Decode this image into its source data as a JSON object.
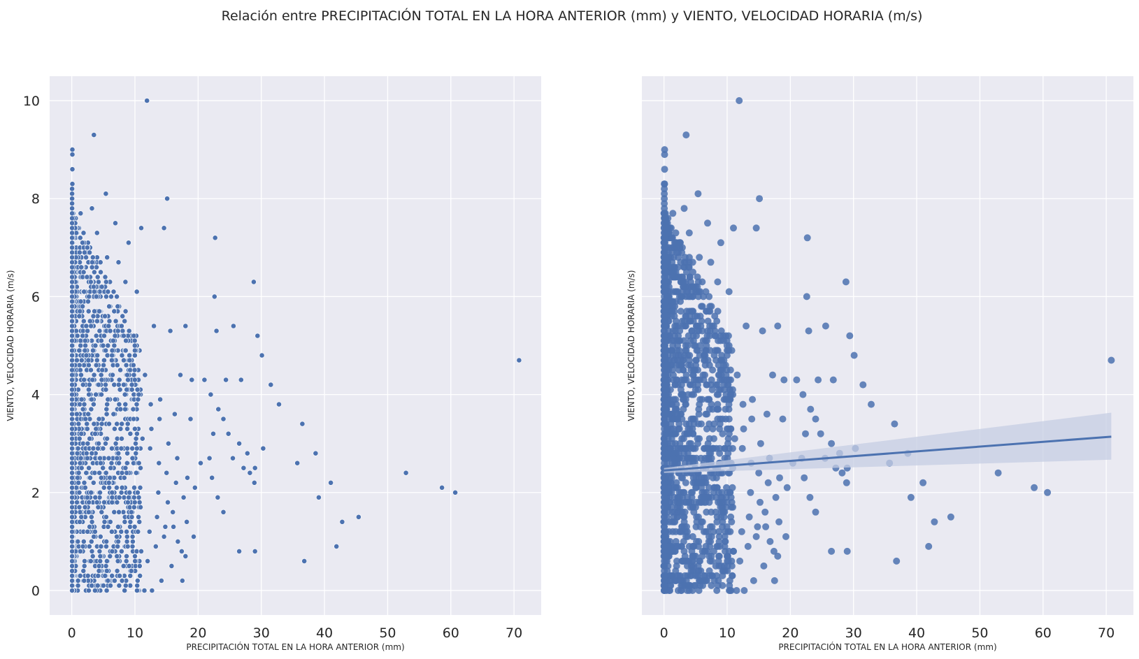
{
  "figure": {
    "title": "Relación entre PRECIPITACIÓN TOTAL EN LA HORA ANTERIOR (mm) y VIENTO, VELOCIDAD HORARIA (m/s)",
    "background": "#ffffff",
    "axes_facecolor": "#eaeaf2",
    "grid_color": "#ffffff",
    "point_color": "#4c72b0",
    "band_color": "#c5cde3"
  },
  "chart_data": [
    {
      "type": "scatter",
      "title": "",
      "xlabel": "PRECIPITACIÓN TOTAL EN LA HORA ANTERIOR (mm)",
      "ylabel": "VIENTO, VELOCIDAD HORARIA (m/s)",
      "xlim": [
        -3.5,
        74.3
      ],
      "ylim": [
        -0.5,
        10.5
      ],
      "xticks": [
        0,
        10,
        20,
        30,
        40,
        50,
        60,
        70
      ],
      "yticks": [
        0,
        2,
        4,
        6,
        8,
        10
      ],
      "grid": true,
      "legend": "none",
      "series": [
        {
          "x": [
            11.9,
            3.5,
            0.1,
            0.1,
            0.1,
            0.1,
            5.4,
            15.1,
            1.4,
            6.9,
            3.2,
            11.0,
            14.6,
            4.0,
            22.7,
            9.0,
            5.6,
            7.4,
            1.5,
            28.8,
            8.5,
            4.1,
            10.3,
            22.6,
            15.6,
            2.3,
            29.4,
            25.6,
            22.9,
            30.1,
            26.8,
            24.4,
            31.5,
            32.8,
            36.5,
            38.6,
            35.7,
            39.1,
            36.8,
            26.5,
            29.0,
            41.0,
            45.4,
            42.8,
            41.9,
            52.9,
            58.6,
            60.7,
            70.8,
            13.0,
            18.0,
            19.0,
            21.0,
            17.2,
            11.6,
            12.5,
            14.0,
            16.3,
            18.8,
            22.0,
            22.4,
            23.2,
            24.0,
            24.8,
            25.5,
            26.5,
            27.8,
            28.2,
            29.0,
            30.3,
            21.8,
            22.2,
            23.1,
            24.0,
            27.2,
            28.9,
            20.4,
            19.5,
            17.7,
            18.2,
            16.0,
            14.8,
            13.5,
            12.3,
            13.7,
            15.2,
            16.8,
            18.0,
            19.3,
            17.5,
            15.8,
            14.2,
            12.7,
            11.5,
            10.8,
            12.0,
            13.3,
            14.6,
            16.1,
            17.4,
            16.5,
            15.0,
            13.8,
            12.4,
            11.2,
            12.6,
            13.9,
            15.3,
            16.7,
            18.3
          ],
          "y": [
            10.0,
            9.3,
            9.0,
            8.9,
            8.6,
            8.3,
            8.1,
            8.0,
            7.7,
            7.5,
            7.8,
            7.4,
            7.4,
            7.3,
            7.2,
            7.1,
            6.8,
            6.7,
            6.6,
            6.3,
            6.3,
            6.4,
            6.1,
            6.0,
            5.3,
            5.4,
            5.2,
            5.4,
            5.3,
            4.8,
            4.3,
            4.3,
            4.2,
            3.8,
            3.4,
            2.8,
            2.6,
            1.9,
            0.6,
            0.8,
            0.8,
            2.2,
            1.5,
            1.4,
            0.9,
            2.4,
            2.1,
            2.0,
            4.7,
            5.4,
            5.4,
            4.3,
            4.3,
            4.4,
            4.4,
            3.8,
            3.9,
            3.6,
            3.5,
            4.0,
            3.2,
            3.7,
            3.5,
            3.2,
            2.7,
            3.0,
            2.8,
            2.4,
            2.5,
            2.9,
            2.7,
            2.3,
            1.9,
            1.6,
            2.5,
            2.2,
            2.6,
            2.1,
            1.9,
            1.4,
            1.6,
            1.3,
            1.5,
            1.2,
            2.0,
            1.8,
            1.0,
            0.7,
            1.1,
            0.2,
            0.5,
            0.2,
            0.0,
            0.0,
            0.3,
            0.6,
            0.9,
            1.1,
            1.3,
            0.8,
            2.2,
            2.4,
            2.6,
            2.9,
            3.1,
            3.3,
            3.5,
            3.0,
            2.7,
            2.3
          ]
        }
      ]
    },
    {
      "type": "scatter",
      "title": "",
      "xlabel": "PRECIPITACIÓN TOTAL EN LA HORA ANTERIOR (mm)",
      "ylabel": "VIENTO, VELOCIDAD HORARIA (m/s)",
      "xlim": [
        -3.5,
        74.3
      ],
      "ylim": [
        -0.5,
        10.5
      ],
      "xticks": [
        0,
        10,
        20,
        30,
        40,
        50,
        60,
        70
      ],
      "yticks": [
        0,
        2,
        4,
        6,
        8,
        10
      ],
      "grid": true,
      "legend": "none",
      "series": [
        {
          "x": [
            11.9,
            3.5,
            0.1,
            0.1,
            0.1,
            0.1,
            5.4,
            15.1,
            1.4,
            6.9,
            3.2,
            11.0,
            14.6,
            4.0,
            22.7,
            9.0,
            5.6,
            7.4,
            1.5,
            28.8,
            8.5,
            4.1,
            10.3,
            22.6,
            15.6,
            2.3,
            29.4,
            25.6,
            22.9,
            30.1,
            26.8,
            24.4,
            31.5,
            32.8,
            36.5,
            38.6,
            35.7,
            39.1,
            36.8,
            26.5,
            29.0,
            41.0,
            45.4,
            42.8,
            41.9,
            52.9,
            58.6,
            60.7,
            70.8,
            13.0,
            18.0,
            19.0,
            21.0,
            17.2,
            11.6,
            12.5,
            14.0,
            16.3,
            18.8,
            22.0,
            22.4,
            23.2,
            24.0,
            24.8,
            25.5,
            26.5,
            27.8,
            28.2,
            29.0,
            30.3,
            21.8,
            22.2,
            23.1,
            24.0,
            27.2,
            28.9,
            20.4,
            19.5,
            17.7,
            18.2,
            16.0,
            14.8,
            13.5,
            12.3,
            13.7,
            15.2,
            16.8,
            18.0,
            19.3,
            17.5,
            15.8,
            14.2,
            12.7,
            11.5,
            10.8,
            12.0,
            13.3,
            14.6,
            16.1,
            17.4,
            16.5,
            15.0,
            13.8,
            12.4,
            11.2,
            12.6,
            13.9,
            15.3,
            16.7,
            18.3
          ],
          "y": [
            10.0,
            9.3,
            9.0,
            8.9,
            8.6,
            8.3,
            8.1,
            8.0,
            7.7,
            7.5,
            7.8,
            7.4,
            7.4,
            7.3,
            7.2,
            7.1,
            6.8,
            6.7,
            6.6,
            6.3,
            6.3,
            6.4,
            6.1,
            6.0,
            5.3,
            5.4,
            5.2,
            5.4,
            5.3,
            4.8,
            4.3,
            4.3,
            4.2,
            3.8,
            3.4,
            2.8,
            2.6,
            1.9,
            0.6,
            0.8,
            0.8,
            2.2,
            1.5,
            1.4,
            0.9,
            2.4,
            2.1,
            2.0,
            4.7,
            5.4,
            5.4,
            4.3,
            4.3,
            4.4,
            4.4,
            3.8,
            3.9,
            3.6,
            3.5,
            4.0,
            3.2,
            3.7,
            3.5,
            3.2,
            2.7,
            3.0,
            2.8,
            2.4,
            2.5,
            2.9,
            2.7,
            2.3,
            1.9,
            1.6,
            2.5,
            2.2,
            2.6,
            2.1,
            1.9,
            1.4,
            1.6,
            1.3,
            1.5,
            1.2,
            2.0,
            1.8,
            1.0,
            0.7,
            1.1,
            0.2,
            0.5,
            0.2,
            0.0,
            0.0,
            0.3,
            0.6,
            0.9,
            1.1,
            1.3,
            0.8,
            2.2,
            2.4,
            2.6,
            2.9,
            3.1,
            3.3,
            3.5,
            3.0,
            2.7,
            2.3
          ]
        }
      ],
      "regression": {
        "x": [
          0,
          70.8
        ],
        "y": [
          2.45,
          3.14
        ],
        "ci_upper": [
          2.5,
          3.63
        ],
        "ci_lower": [
          2.4,
          2.67
        ]
      }
    }
  ]
}
